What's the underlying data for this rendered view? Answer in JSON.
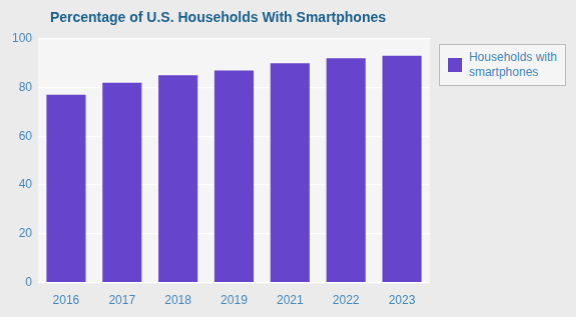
{
  "chart_data": {
    "type": "bar",
    "title": "Percentage of U.S. Households With Smartphones",
    "categories": [
      "2016",
      "2017",
      "2018",
      "2019",
      "2021",
      "2022",
      "2023"
    ],
    "series": [
      {
        "name": "Households with\nsmartphones",
        "color": "#6644cc",
        "values": [
          77,
          82,
          85,
          87,
          90,
          92,
          93
        ]
      }
    ],
    "ylim": [
      0,
      100
    ],
    "yticks": [
      0,
      20,
      40,
      60,
      80,
      100
    ],
    "grid": true,
    "legend": "right"
  }
}
